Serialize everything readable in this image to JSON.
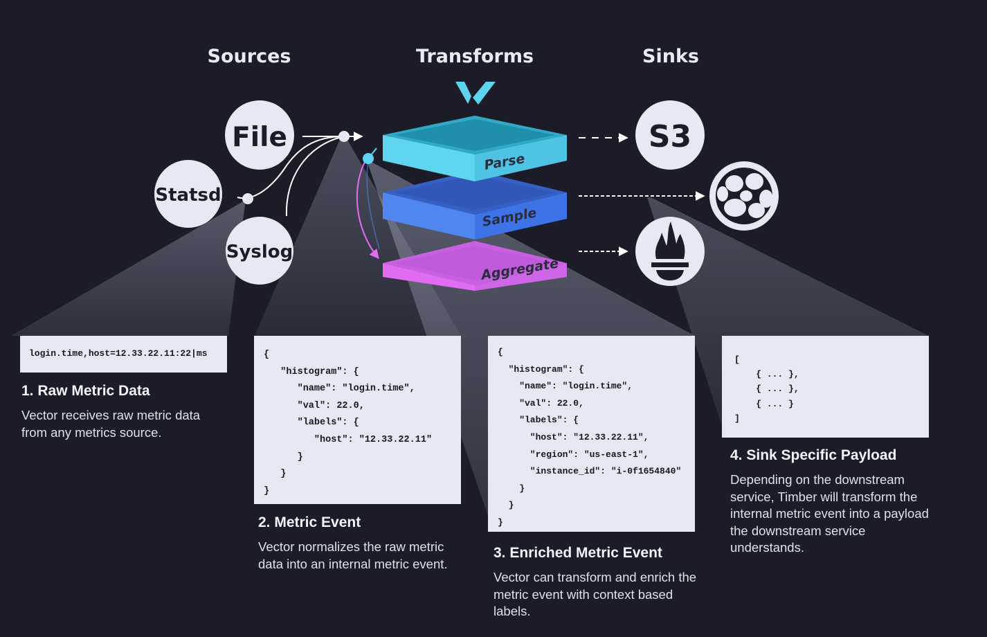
{
  "columns": {
    "sources": "Sources",
    "transforms": "Transforms",
    "sinks": "Sinks"
  },
  "source_nodes": {
    "file": "File",
    "statsd": "Statsd",
    "syslog": "Syslog"
  },
  "transform_layers": {
    "parse": "Parse",
    "sample": "Sample",
    "aggregate": "Aggregate"
  },
  "sink_nodes": {
    "s3": "S3",
    "cluster_icon": "cluster-logo-icon",
    "prometheus_icon": "prometheus-torch-icon"
  },
  "logo_icon": "vector-logo-icon",
  "colors": {
    "background": "#1c1c29",
    "node_fill": "#e4e9f4",
    "parse": "#5ed3ee",
    "sample": "#4f86ef",
    "aggregate": "#e36cf0",
    "code_box": "#e4e9f4"
  },
  "code": {
    "raw": "login.time,host=12.33.22.11:22|ms",
    "event": "{\n   \"histogram\": {\n      \"name\": \"login.time\",\n      \"val\": 22.0,\n      \"labels\": {\n         \"host\": \"12.33.22.11\"\n      }\n   }\n}",
    "enriched": "{\n  \"histogram\": {\n    \"name\": \"login.time\",\n    \"val\": 22.0,\n    \"labels\": {\n      \"host\": \"12.33.22.11\",\n      \"region\": \"us-east-1\",\n      \"instance_id\": \"i-0f1654840\"\n    }\n  }\n}",
    "payload": "[\n    { ... },\n    { ... },\n    { ... }\n]"
  },
  "steps": [
    {
      "title": "1. Raw Metric Data",
      "text": "Vector receives raw metric data from any metrics source."
    },
    {
      "title": "2. Metric Event",
      "text": "Vector normalizes the raw metric data into an internal metric event."
    },
    {
      "title": "3. Enriched Metric Event",
      "text": "Vector can transform and enrich the metric event with context based labels."
    },
    {
      "title": "4. Sink Specific Payload",
      "text": "Depending on the downstream service, Timber will transform the internal metric event into a payload the downstream service understands."
    }
  ]
}
